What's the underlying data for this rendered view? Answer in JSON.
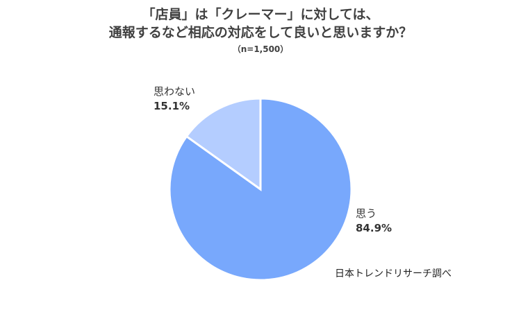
{
  "chart_data": {
    "type": "pie",
    "title_lines": [
      "「店員」は「クレーマー」に対しては、",
      "通報するなど相応の対応をして良いと思いますか？"
    ],
    "subtitle": "（n=1,500）",
    "slices": [
      {
        "label": "思う",
        "value": 84.9,
        "value_label": "84.9%",
        "color": "#78A8FC"
      },
      {
        "label": "思わない",
        "value": 15.1,
        "value_label": "15.1%",
        "color": "#B4CDFF"
      }
    ],
    "start_angle_deg": 0,
    "direction": "clockwise",
    "slice_border_color": "#FFFFFF"
  },
  "source": "日本トレンドリサーチ調べ"
}
